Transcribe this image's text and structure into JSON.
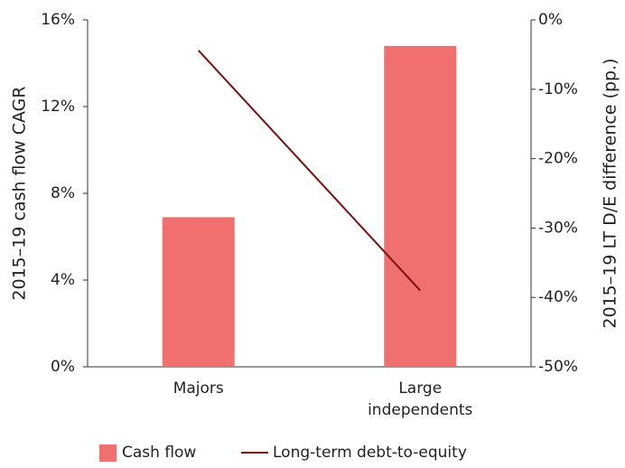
{
  "chart_data": {
    "type": "bar",
    "categories": [
      "Majors",
      "Large independents"
    ],
    "series": [
      {
        "name": "Cash flow",
        "type": "bar",
        "color": "#f07070",
        "values": [
          6.9,
          14.8
        ]
      },
      {
        "name": "Long-term debt-to-equity",
        "type": "line",
        "axis": "y2",
        "color": "#7a1010",
        "values": [
          -4.4,
          -39
        ]
      }
    ],
    "ylabel": "2015–19 cash flow CAGR",
    "y2label": "2015–19 LT D/E difference (pp.)",
    "ylim": [
      0,
      16
    ],
    "yticks": [
      {
        "value": 0,
        "label": "0%"
      },
      {
        "value": 4,
        "label": "4%"
      },
      {
        "value": 8,
        "label": "8%"
      },
      {
        "value": 12,
        "label": "12%"
      },
      {
        "value": 16,
        "label": "16%"
      }
    ],
    "y2lim": [
      -50,
      0
    ],
    "y2ticks": [
      {
        "value": -50,
        "label": "-50%"
      },
      {
        "value": -40,
        "label": "-40%"
      },
      {
        "value": -30,
        "label": "-30%"
      },
      {
        "value": -20,
        "label": "-20%"
      },
      {
        "value": -10,
        "label": "-10%"
      },
      {
        "value": 0,
        "label": "0%"
      }
    ],
    "legend": "bottom"
  }
}
